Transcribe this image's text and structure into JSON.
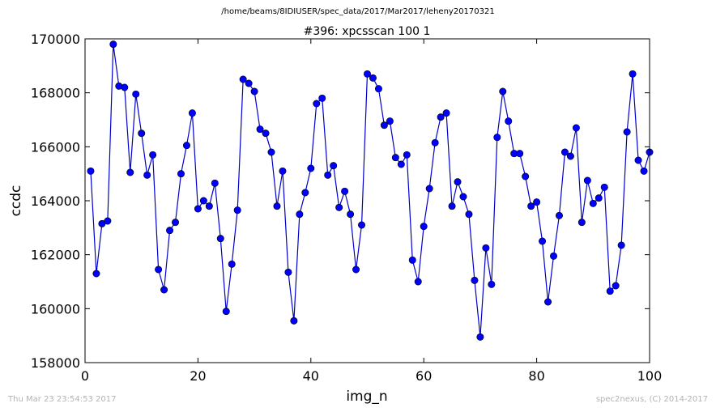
{
  "header": {
    "path": "/home/beams/8IDIUSER/spec_data/2017/Mar2017/leheny20170321"
  },
  "footer": {
    "timestamp": "Thu Mar 23 23:54:53 2017",
    "credit": "spec2nexus, (C) 2014-2017"
  },
  "colors": {
    "line": "#0000cc",
    "marker": "#0000ff",
    "marker_edge": "#000000"
  },
  "chart_data": {
    "type": "line",
    "title": "#396: xpcsscan 100 1",
    "xlabel": "img_n",
    "ylabel": "ccdc",
    "xlim": [
      0,
      100
    ],
    "ylim": [
      158000,
      170000
    ],
    "xticks": [
      0,
      20,
      40,
      60,
      80,
      100
    ],
    "yticks": [
      158000,
      160000,
      162000,
      164000,
      166000,
      168000,
      170000
    ],
    "grid": false,
    "series": [
      {
        "marker": "circle",
        "x": [
          1,
          2,
          3,
          4,
          5,
          6,
          7,
          8,
          9,
          10,
          11,
          12,
          13,
          14,
          15,
          16,
          17,
          18,
          19,
          20,
          21,
          22,
          23,
          24,
          25,
          26,
          27,
          28,
          29,
          30,
          31,
          32,
          33,
          34,
          35,
          36,
          37,
          38,
          39,
          40,
          41,
          42,
          43,
          44,
          45,
          46,
          47,
          48,
          49,
          50,
          51,
          52,
          53,
          54,
          55,
          56,
          57,
          58,
          59,
          60,
          61,
          62,
          63,
          64,
          65,
          66,
          67,
          68,
          69,
          70,
          71,
          72,
          73,
          74,
          75,
          76,
          77,
          78,
          79,
          80,
          81,
          82,
          83,
          84,
          85,
          86,
          87,
          88,
          89,
          90,
          91,
          92,
          93,
          94,
          95,
          96,
          97,
          98,
          99,
          100
        ],
        "values": [
          165100,
          161300,
          163150,
          163250,
          169800,
          168250,
          168200,
          165050,
          167950,
          166500,
          164950,
          165700,
          161450,
          160700,
          162900,
          163200,
          165000,
          166050,
          167250,
          163700,
          164000,
          163800,
          164650,
          162600,
          159900,
          161650,
          163650,
          168500,
          168350,
          168050,
          166650,
          166500,
          165800,
          163800,
          165100,
          161350,
          159550,
          163500,
          164300,
          165200,
          167600,
          167800,
          164950,
          165300,
          163750,
          164350,
          163500,
          161450,
          163100,
          168700,
          168550,
          168150,
          166800,
          166950,
          165600,
          165350,
          165700,
          161800,
          161000,
          163050,
          164450,
          166150,
          167100,
          167250,
          163800,
          164700,
          164150,
          163500,
          161050,
          158950,
          162250,
          160900,
          166350,
          168050,
          166950,
          165750,
          165750,
          164900,
          163800,
          163950,
          162500,
          160250,
          161950,
          163450,
          165800,
          165650,
          166700,
          163200,
          164750,
          163900,
          164100,
          164500,
          160650,
          160850,
          162350,
          166550,
          168700,
          165500,
          165100,
          165800
        ]
      }
    ]
  }
}
